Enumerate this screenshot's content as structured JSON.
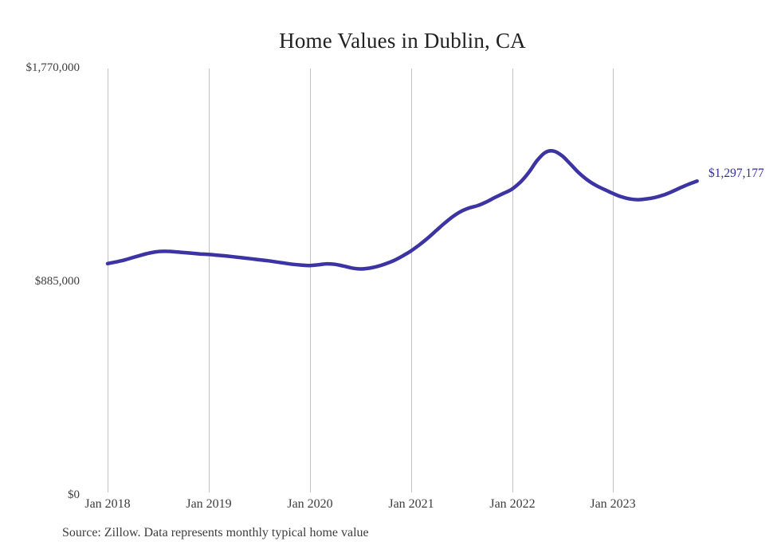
{
  "title": "Home Values in Dublin, CA",
  "source_note": "Source: Zillow. Data represents monthly typical home value",
  "colors": {
    "line": "#3b34a2",
    "annotation_text": "#312b9b",
    "gridline": "#c2c2c2",
    "axis_text": "#3d3d3d",
    "title_text": "#212121",
    "background": "#ffffff"
  },
  "chart_data": {
    "type": "line",
    "title": "Home Values in Dublin, CA",
    "xlabel": "",
    "ylabel": "",
    "ylim": [
      0,
      1770000
    ],
    "grid": "vertical-only",
    "legend": "none",
    "y_ticks": [
      1770000,
      885000,
      0
    ],
    "y_tick_labels": [
      "$1,770,000",
      "$885,000",
      "$0"
    ],
    "x_tick_labels": [
      "Jan 2018",
      "Jan 2019",
      "Jan 2020",
      "Jan 2021",
      "Jan 2022",
      "Jan 2023"
    ],
    "x_start_month": "Jan 2018",
    "x_end_month": "Nov 2023",
    "annotation": {
      "text": "$1,297,177",
      "value": 1297177
    },
    "series": [
      {
        "name": "Monthly typical home value",
        "values": [
          955000,
          962000,
          970000,
          980000,
          990000,
          999000,
          1005000,
          1006000,
          1004000,
          1001000,
          998000,
          995000,
          993000,
          990000,
          987000,
          983000,
          979000,
          975000,
          971000,
          967000,
          962000,
          957000,
          952000,
          949000,
          947000,
          950000,
          954000,
          952000,
          945000,
          937000,
          933000,
          936000,
          943000,
          954000,
          968000,
          986000,
          1007000,
          1032000,
          1060000,
          1091000,
          1122000,
          1150000,
          1172000,
          1186000,
          1196000,
          1211000,
          1229000,
          1246000,
          1263000,
          1292000,
          1332000,
          1382000,
          1416000,
          1421000,
          1401000,
          1366000,
          1330000,
          1301000,
          1279000,
          1262000,
          1246000,
          1232000,
          1223000,
          1220000,
          1223000,
          1229000,
          1239000,
          1253000,
          1269000,
          1284000,
          1297177
        ]
      }
    ]
  }
}
